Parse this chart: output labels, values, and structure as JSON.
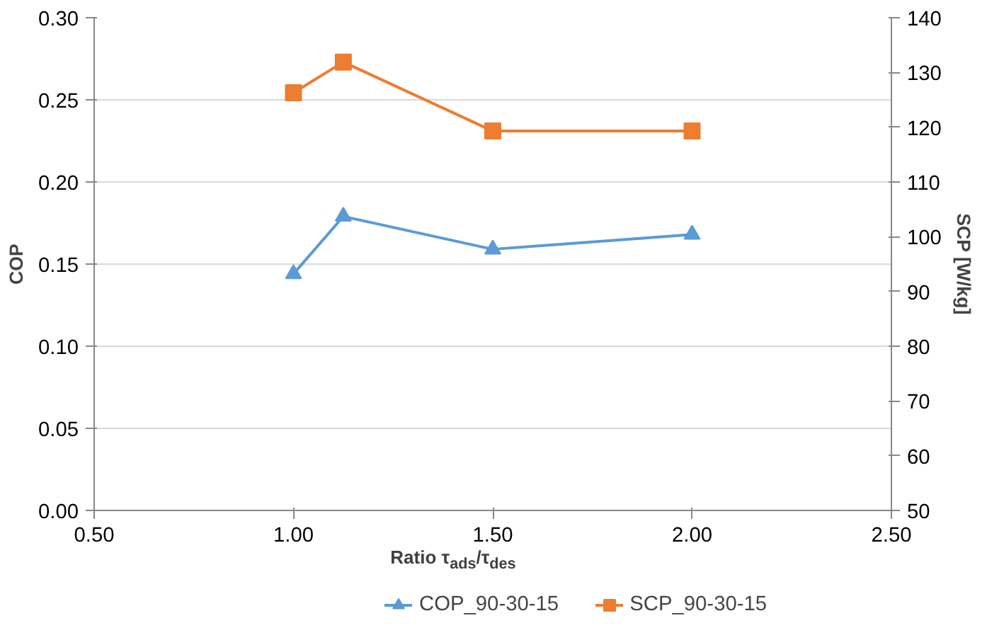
{
  "chart_data": {
    "type": "line",
    "xlabel": "Ratio τ$_{ads}$/τ$_{des}$",
    "ylabel": "COP",
    "y2label": "SCP [W/kg]",
    "x": [
      1.0,
      1.125,
      1.5,
      2.0
    ],
    "series": [
      {
        "name": "COP_90-30-15",
        "color": "#5b9bd5",
        "marker": "triangle",
        "values": [
          0.144,
          0.179,
          0.159,
          0.168
        ]
      },
      {
        "name": "SCP_90-30-15",
        "color": "#ed7d31",
        "marker": "square",
        "axis": "y2",
        "values": [
          126.3,
          131.9,
          119.3,
          119.3
        ]
      }
    ],
    "xlim": [
      0.5,
      2.5
    ],
    "xticks": [
      {
        "value": 0.5,
        "label": "0.50"
      },
      {
        "value": 1.0,
        "label": "1.00"
      },
      {
        "value": 1.5,
        "label": "1.50"
      },
      {
        "value": 2.0,
        "label": "2.00"
      },
      {
        "value": 2.5,
        "label": "2.50"
      }
    ],
    "ylim": [
      0,
      0.3
    ],
    "yticks": [
      {
        "value": 0,
        "label": "0.00"
      },
      {
        "value": 0.05,
        "label": "0.05"
      },
      {
        "value": 0.1,
        "label": "0.10"
      },
      {
        "value": 0.15,
        "label": "0.15"
      },
      {
        "value": 0.2,
        "label": "0.20"
      },
      {
        "value": 0.25,
        "label": "0.25"
      },
      {
        "value": 0.3,
        "label": "0.30"
      }
    ],
    "y2lim": [
      50,
      140
    ],
    "y2ticks": [
      50,
      60,
      70,
      80,
      90,
      100,
      110,
      120,
      130,
      140
    ],
    "grid": "y",
    "legend": "bottom"
  }
}
